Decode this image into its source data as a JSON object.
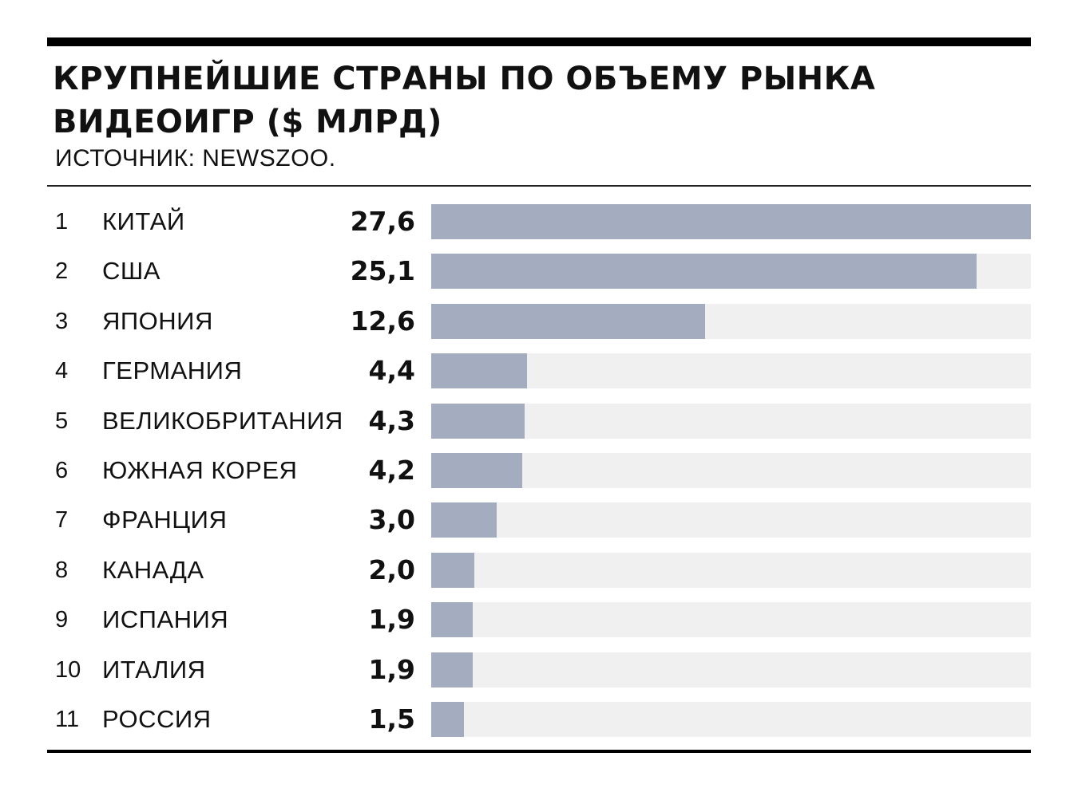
{
  "chart_data": {
    "type": "bar",
    "orientation": "horizontal",
    "title_lines": [
      "КРУПНЕЙШИЕ СТРАНЫ ПО ОБЪЕМУ РЫНКА",
      "ВИДЕОИГР ($ МЛРД)"
    ],
    "subtitle": "ИСТОЧНИК: NEWSZOO.",
    "bar_color": "#a3adbf",
    "track_color": "#f0f0f0",
    "xlim": [
      0,
      27.6
    ],
    "grid": false,
    "rows": [
      {
        "rank": "1",
        "country": "КИТАЙ",
        "value": 27.6,
        "label": "27,6"
      },
      {
        "rank": "2",
        "country": "США",
        "value": 25.1,
        "label": "25,1"
      },
      {
        "rank": "3",
        "country": "ЯПОНИЯ",
        "value": 12.6,
        "label": "12,6"
      },
      {
        "rank": "4",
        "country": "ГЕРМАНИЯ",
        "value": 4.4,
        "label": "4,4"
      },
      {
        "rank": "5",
        "country": "ВЕЛИКОБРИТАНИЯ",
        "value": 4.3,
        "label": "4,3"
      },
      {
        "rank": "6",
        "country": "ЮЖНАЯ КОРЕЯ",
        "value": 4.2,
        "label": "4,2"
      },
      {
        "rank": "7",
        "country": "ФРАНЦИЯ",
        "value": 3.0,
        "label": "3,0"
      },
      {
        "rank": "8",
        "country": "КАНАДА",
        "value": 2.0,
        "label": "2,0"
      },
      {
        "rank": "9",
        "country": "ИСПАНИЯ",
        "value": 1.9,
        "label": "1,9"
      },
      {
        "rank": "10",
        "country": "ИТАЛИЯ",
        "value": 1.9,
        "label": "1,9"
      },
      {
        "rank": "11",
        "country": "РОССИЯ",
        "value": 1.5,
        "label": "1,5"
      }
    ]
  }
}
